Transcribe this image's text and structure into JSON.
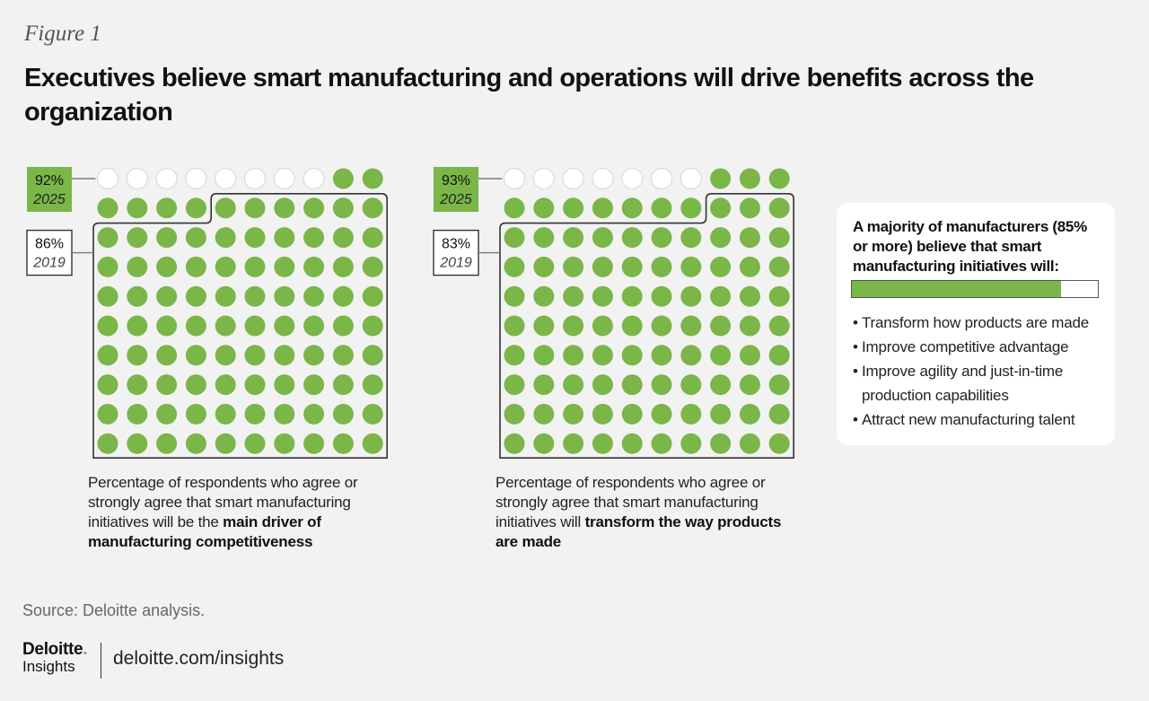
{
  "figure_label": "Figure 1",
  "title": "Executives believe smart manufacturing and operations will drive benefits across the organization",
  "colors": {
    "green": "#7ab648",
    "empty": "#ffffff",
    "background": "#f2f2f2",
    "outline": "#333333"
  },
  "chart_data": [
    {
      "type": "waffle",
      "grid": {
        "rows": 10,
        "cols": 10
      },
      "series": [
        {
          "name": "2025",
          "label": "92%",
          "year": "2025",
          "value": 92
        },
        {
          "name": "2019",
          "label": "86%",
          "year": "2019",
          "value": 86
        }
      ],
      "caption_plain": "Percentage of respondents who agree or strongly agree that smart manufacturing initiatives will be the ",
      "caption_bold": "main driver of manufacturing competitiveness"
    },
    {
      "type": "waffle",
      "grid": {
        "rows": 10,
        "cols": 10
      },
      "series": [
        {
          "name": "2025",
          "label": "93%",
          "year": "2025",
          "value": 93
        },
        {
          "name": "2019",
          "label": "83%",
          "year": "2019",
          "value": 83
        }
      ],
      "caption_plain": "Percentage of respondents who agree or strongly agree that smart manufacturing initiatives will ",
      "caption_bold": "transform the way products are made"
    }
  ],
  "callout": {
    "heading": "A majority of manufacturers (85% or more) believe that smart manufacturing initiatives will:",
    "bar_value": 85,
    "items": [
      "Transform how products are made",
      "Improve competitive advantage",
      "Improve agility and just-in-time production capabilities",
      "Attract new manufacturing talent"
    ]
  },
  "source": "Source: Deloitte analysis.",
  "footer": {
    "logo_word": "Deloitte",
    "logo_dot": ".",
    "logo_sub": "Insights",
    "url": "deloitte.com/insights"
  }
}
